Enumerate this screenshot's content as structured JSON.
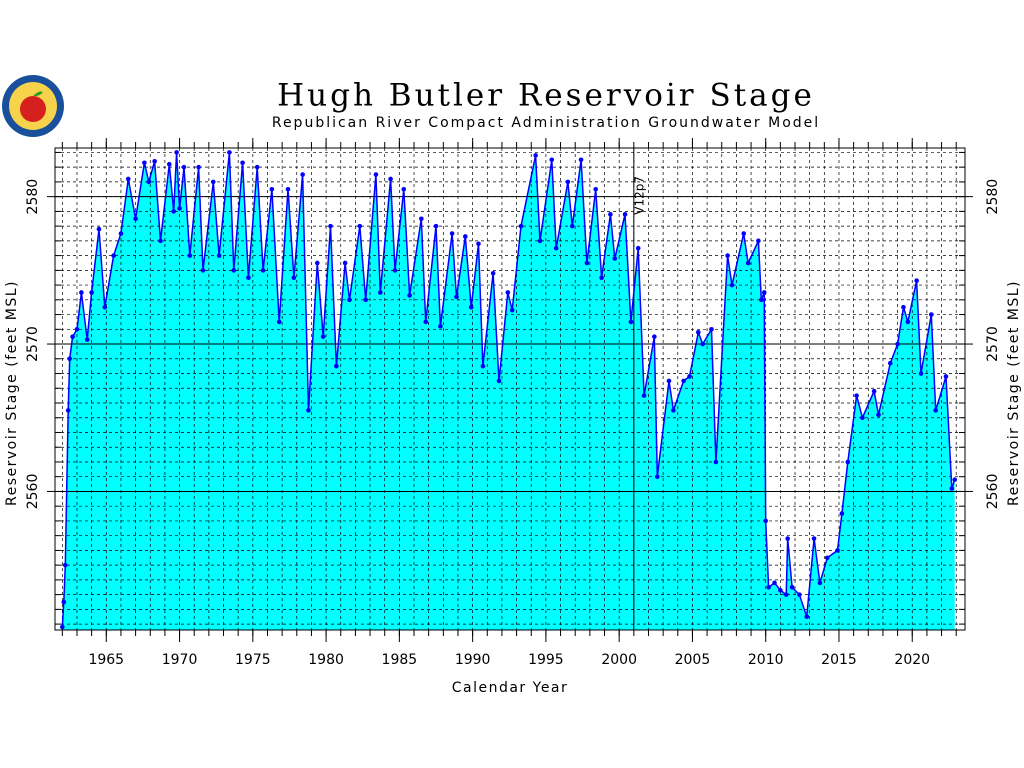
{
  "chart_data": {
    "type": "area",
    "title": "Hugh Butler Reservoir Stage",
    "subtitle": "Republican River Compact Administration Groundwater Model",
    "x_label": "Calendar Year",
    "y_label": "Reservoir Stage (feet MSL)",
    "annotation": {
      "text": "V12p7",
      "x": 2001
    },
    "line_color": "#0000ff",
    "fill_color": "#00ffff",
    "xlim": [
      1961.5,
      2023.6
    ],
    "xticks": [
      1965,
      1970,
      1975,
      1980,
      1985,
      1990,
      1995,
      2000,
      2005,
      2010,
      2015,
      2020
    ],
    "xticks_minor": [
      1962,
      1963,
      1964,
      1965,
      1966,
      1967,
      1968,
      1969,
      1970,
      1971,
      1972,
      1973,
      1974,
      1975,
      1976,
      1977,
      1978,
      1979,
      1980,
      1981,
      1982,
      1983,
      1984,
      1985,
      1986,
      1987,
      1988,
      1989,
      1990,
      1991,
      1992,
      1993,
      1994,
      1995,
      1996,
      1997,
      1998,
      1999,
      2000,
      2001,
      2002,
      2003,
      2004,
      2005,
      2006,
      2007,
      2008,
      2009,
      2010,
      2011,
      2012,
      2013,
      2014,
      2015,
      2016,
      2017,
      2018,
      2019,
      2020,
      2021,
      2022,
      2023
    ],
    "ylim": [
      2550.6,
      2583.3
    ],
    "yticks": [
      2560,
      2570,
      2580
    ],
    "yticks_minor": [
      2551,
      2552,
      2553,
      2554,
      2555,
      2556,
      2557,
      2558,
      2559,
      2560,
      2561,
      2562,
      2563,
      2564,
      2565,
      2566,
      2567,
      2568,
      2569,
      2570,
      2571,
      2572,
      2573,
      2574,
      2575,
      2576,
      2577,
      2578,
      2579,
      2580,
      2581,
      2582,
      2583
    ],
    "x": [
      1962.0,
      1962.1,
      1962.2,
      1962.4,
      1962.5,
      1962.7,
      1963.0,
      1963.3,
      1963.7,
      1964.0,
      1964.5,
      1964.9,
      1965.5,
      1966.0,
      1966.5,
      1967.0,
      1967.6,
      1967.9,
      1968.3,
      1968.7,
      1969.3,
      1969.6,
      1969.8,
      1970.0,
      1970.3,
      1970.7,
      1971.3,
      1971.6,
      1972.3,
      1972.7,
      1973.4,
      1973.7,
      1974.3,
      1974.7,
      1975.3,
      1975.7,
      1976.3,
      1976.8,
      1977.4,
      1977.8,
      1978.4,
      1978.8,
      1979.4,
      1979.8,
      1980.3,
      1980.7,
      1981.3,
      1981.6,
      1982.3,
      1982.7,
      1983.4,
      1983.7,
      1984.4,
      1984.7,
      1985.3,
      1985.7,
      1986.5,
      1986.8,
      1987.5,
      1987.8,
      1988.6,
      1988.9,
      1989.5,
      1989.9,
      1990.4,
      1990.7,
      1991.4,
      1991.8,
      1992.4,
      1992.7,
      1993.3,
      1994.3,
      1994.6,
      1995.4,
      1995.7,
      1996.5,
      1996.8,
      1997.4,
      1997.8,
      1998.4,
      1998.8,
      1999.4,
      1999.7,
      2000.4,
      2000.8,
      2001.3,
      2001.7,
      2002.4,
      2002.6,
      2003.4,
      2003.7,
      2004.4,
      2004.8,
      2005.4,
      2005.7,
      2006.3,
      2006.6,
      2007.4,
      2007.7,
      2008.5,
      2008.8,
      2009.5,
      2009.7,
      2009.9,
      2010.0,
      2010.2,
      2010.6,
      2011.0,
      2011.4,
      2011.5,
      2011.8,
      2012.3,
      2012.8,
      2013.3,
      2013.7,
      2014.2,
      2014.9,
      2015.2,
      2015.6,
      2016.2,
      2016.6,
      2017.4,
      2017.7,
      2018.5,
      2019.0,
      2019.4,
      2019.7,
      2020.3,
      2020.6,
      2021.3,
      2021.6,
      2022.3,
      2022.7,
      2022.9
    ],
    "values": [
      2550.8,
      2552.5,
      2555,
      2565.5,
      2569,
      2570.5,
      2571,
      2573.5,
      2570.3,
      2573.5,
      2577.8,
      2572.5,
      2576,
      2577.5,
      2581.2,
      2578.5,
      2582.3,
      2581,
      2582.4,
      2577,
      2582.2,
      2579,
      2583,
      2579.2,
      2582,
      2576,
      2582,
      2575,
      2581,
      2576,
      2583,
      2575,
      2582.3,
      2574.5,
      2582,
      2575,
      2580.5,
      2571.5,
      2580.5,
      2574.5,
      2581.5,
      2565.5,
      2575.5,
      2570.5,
      2578,
      2568.5,
      2575.5,
      2573,
      2578,
      2573,
      2581.5,
      2573.5,
      2581.2,
      2575,
      2580.5,
      2573.3,
      2578.5,
      2571.5,
      2578,
      2571.2,
      2577.5,
      2573.2,
      2577.3,
      2572.5,
      2576.8,
      2568.5,
      2574.8,
      2567.5,
      2573.5,
      2572.3,
      2578,
      2582.8,
      2577,
      2582.5,
      2576.5,
      2581,
      2578,
      2582.5,
      2575.5,
      2580.5,
      2574.5,
      2578.8,
      2575.8,
      2578.8,
      2571.5,
      2576.5,
      2566.5,
      2570.5,
      2561,
      2567.5,
      2565.5,
      2567.5,
      2567.8,
      2570.8,
      2570,
      2571,
      2562,
      2576,
      2574,
      2577.5,
      2575.5,
      2577,
      2573,
      2573.5,
      2558,
      2553.5,
      2553.8,
      2553.3,
      2553,
      2556.8,
      2553.5,
      2553.0,
      2551.5,
      2556.8,
      2553.8,
      2555.5,
      2556,
      2558.5,
      2562,
      2566.5,
      2565,
      2566.8,
      2565.2,
      2568.7,
      2570,
      2572.5,
      2571.5,
      2574.3,
      2568,
      2572,
      2565.5,
      2567.8,
      2560.2,
      2560.8
    ]
  }
}
